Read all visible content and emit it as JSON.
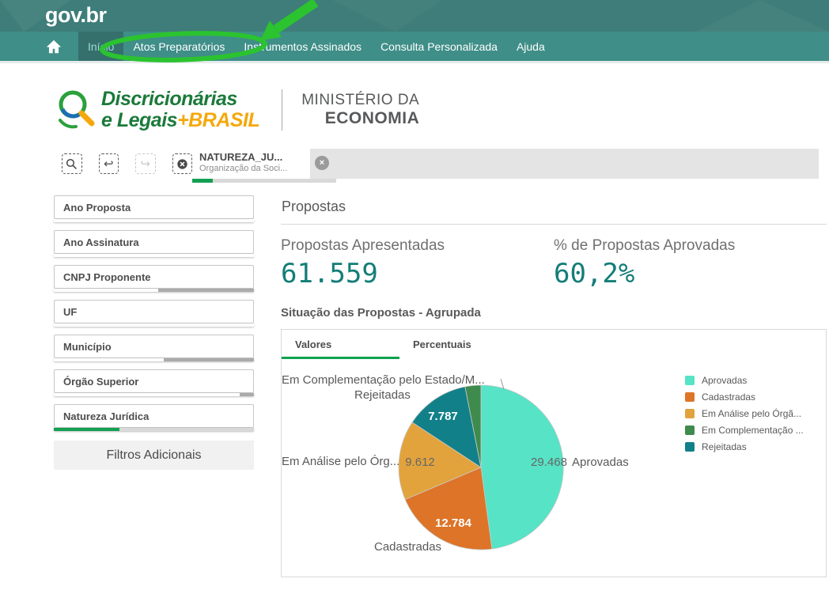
{
  "colors": {
    "topbar_teal": "#3e7d79",
    "nav_teal": "#3f8e88",
    "nav_active_bg": "#35706c",
    "nav_active_text": "#99dcd6",
    "kpi_teal": "#147d78",
    "selection_green": "#12a152",
    "tab_underline_green": "#0ea14f",
    "excluded_gray": "#ababab",
    "annotation_green": "#2bc32f"
  },
  "annotation": {
    "shape": "ellipse-and-arrow",
    "target": "Atos Preparatórios",
    "color": "#2bc32f"
  },
  "topbar": {
    "logo": "gov.br"
  },
  "nav": {
    "items": [
      {
        "label": "Início",
        "active": true
      },
      {
        "label": "Atos Preparatórios",
        "active": false
      },
      {
        "label": "Instrumentos Assinados",
        "active": false
      },
      {
        "label": "Consulta Personalizada",
        "active": false
      },
      {
        "label": "Ajuda",
        "active": false
      }
    ]
  },
  "brand": {
    "logo_line1": "Discricionárias",
    "logo_line2_prefix": "e Legais",
    "logo_line2_accent": "+BRASIL",
    "ministry_line1": "MINISTÉRIO DA",
    "ministry_line2": "ECONOMIA"
  },
  "selections": {
    "tools": [
      {
        "name": "search-selections",
        "disabled": false
      },
      {
        "name": "step-back",
        "disabled": false
      },
      {
        "name": "step-forward",
        "disabled": true
      },
      {
        "name": "clear-selections",
        "disabled": false
      }
    ],
    "tab": {
      "title": "NATUREZA_JU...",
      "subtitle": "Organização da Soci...",
      "close": "×"
    }
  },
  "sidebar": {
    "filters": [
      {
        "label": "Ano Proposta",
        "bar": [
          [
            "#ffffff",
            100
          ]
        ]
      },
      {
        "label": "Ano Assinatura",
        "bar": [
          [
            "#ffffff",
            100
          ]
        ]
      },
      {
        "label": "CNPJ Proponente",
        "bar": [
          [
            "#ffffff",
            52
          ],
          [
            "#ababab",
            48
          ]
        ]
      },
      {
        "label": "UF",
        "bar": [
          [
            "#ffffff",
            100
          ]
        ]
      },
      {
        "label": "Município",
        "bar": [
          [
            "#ffffff",
            55
          ],
          [
            "#ababab",
            45
          ]
        ]
      },
      {
        "label": "Órgão Superior",
        "bar": [
          [
            "#ffffff",
            93
          ],
          [
            "#ababab",
            7
          ]
        ]
      },
      {
        "label": "Natureza Jurídica",
        "bar": [
          [
            "#12a152",
            33
          ],
          [
            "#d9d9d9",
            67
          ]
        ]
      }
    ],
    "additional_filters_label": "Filtros Adicionais"
  },
  "main": {
    "section_title": "Propostas",
    "kpis": [
      {
        "label": "Propostas Apresentadas",
        "value": "61.559"
      },
      {
        "label": "% de Propostas Aprovadas",
        "value": "60,2%"
      }
    ],
    "chart_section_title": "Situação das Propostas - Agrupada",
    "view_tabs": [
      {
        "label": "Valores",
        "active": true
      },
      {
        "label": "Percentuais",
        "active": false
      }
    ]
  },
  "chart_data": {
    "type": "pie",
    "title": "Situação das Propostas - Agrupada",
    "categories": [
      "Aprovadas",
      "Cadastradas",
      "Em Análise pelo Órg...",
      "Rejeitadas",
      "Em Complementação pelo Estado/M..."
    ],
    "values": [
      29468,
      12784,
      9612,
      7787,
      1908
    ],
    "value_labels": [
      "29.468",
      "12.784",
      "9.612",
      "7.787",
      ""
    ],
    "colors": [
      "#57e3c6",
      "#dd7428",
      "#e2a33d",
      "#128089",
      "#3f8b4d"
    ],
    "outside_labels": [
      "Aprovadas",
      "Cadastradas",
      "Em Análise pelo Órg...",
      "Rejeitadas",
      "Em Complementação pelo Estado/M..."
    ],
    "legend": [
      {
        "label": "Aprovadas",
        "color": "#57e3c6"
      },
      {
        "label": "Cadastradas",
        "color": "#dd7428"
      },
      {
        "label": "Em Análise pelo Órgã...",
        "color": "#e2a33d"
      },
      {
        "label": "Em Complementação ...",
        "color": "#3f8b4d"
      },
      {
        "label": "Rejeitadas",
        "color": "#128089"
      }
    ],
    "legend_position": "right"
  }
}
